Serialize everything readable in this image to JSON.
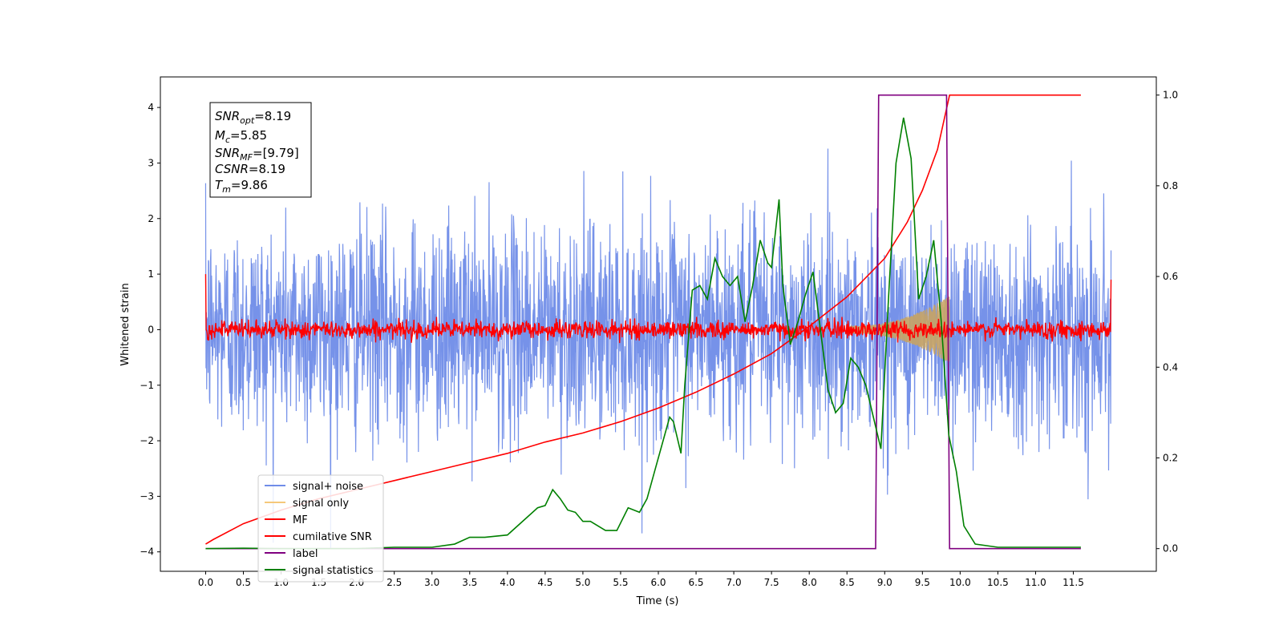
{
  "chart_data": {
    "type": "line",
    "xlabel": "Time (s)",
    "ylabel": "Whitened strain",
    "xlim": [
      -0.6,
      12.6
    ],
    "ylim": [
      -4.35,
      4.55
    ],
    "y2lim": [
      -0.05,
      1.04
    ],
    "grid": false,
    "legend_position": "lower-left",
    "x_ticks": [
      "0.0",
      "0.5",
      "1.0",
      "1.5",
      "2.0",
      "2.5",
      "3.0",
      "3.5",
      "4.0",
      "4.5",
      "5.0",
      "5.5",
      "6.0",
      "6.5",
      "7.0",
      "7.5",
      "8.0",
      "8.5",
      "9.0",
      "9.5",
      "10.0",
      "10.5",
      "11.0",
      "11.5"
    ],
    "y_ticks": [
      "4",
      "3",
      "2",
      "1",
      "0",
      "−1",
      "−2",
      "−3",
      "−4"
    ],
    "y2_ticks": [
      "1.0",
      "0.8",
      "0.6",
      "0.4",
      "0.2",
      "0.0"
    ],
    "annotation": {
      "snr_opt": {
        "base": "SNR",
        "sub": "opt",
        "value": "=8.19"
      },
      "mc": {
        "base": "M",
        "sub": "c",
        "value": "=5.85"
      },
      "snr_mf": {
        "base": "SNR",
        "sub": "MF",
        "value": "=[9.79]"
      },
      "csnr": {
        "base": "CSNR",
        "sub": "",
        "value": "=8.19"
      },
      "tm": {
        "base": "T",
        "sub": "m",
        "value": "=9.86"
      }
    },
    "colors": {
      "signal_noise": "#6f8ce8",
      "signal_only": "#f5c87a",
      "mf": "#ff0000",
      "cumulative_snr": "#ff0000",
      "label": "#800080",
      "signal_statistics": "#008000"
    },
    "series": [
      {
        "name": "signal+ noise",
        "style": "noise",
        "axis": "left",
        "x_range": [
          0.0,
          12.0
        ],
        "noise_sigma": 1.0
      },
      {
        "name": "signal only",
        "style": "chirp",
        "axis": "left",
        "x_range": [
          8.5,
          9.86
        ],
        "peak_amplitude": 0.55
      },
      {
        "name": "MF",
        "style": "noise",
        "axis": "left",
        "x_range": [
          0.0,
          12.0
        ],
        "noise_sigma": 0.08
      },
      {
        "name": "cumilative SNR",
        "axis": "right",
        "x": [
          0.0,
          0.1,
          0.5,
          1.0,
          1.5,
          2.0,
          2.5,
          3.0,
          3.5,
          4.0,
          4.5,
          5.0,
          5.5,
          6.0,
          6.5,
          7.0,
          7.5,
          8.0,
          8.5,
          9.0,
          9.3,
          9.5,
          9.7,
          9.86,
          10.0,
          11.0,
          11.6
        ],
        "values": [
          0.01,
          0.02,
          0.055,
          0.085,
          0.11,
          0.13,
          0.15,
          0.17,
          0.19,
          0.21,
          0.235,
          0.255,
          0.28,
          0.31,
          0.345,
          0.385,
          0.43,
          0.49,
          0.555,
          0.64,
          0.72,
          0.79,
          0.88,
          1.0,
          1.0,
          1.0,
          1.0
        ]
      },
      {
        "name": "label",
        "axis": "right",
        "x": [
          0.0,
          8.88,
          8.92,
          9.82,
          9.86,
          11.6
        ],
        "values": [
          0.0,
          0.0,
          1.0,
          1.0,
          0.0,
          0.0
        ]
      },
      {
        "name": "signal statistics",
        "axis": "right",
        "x": [
          0.0,
          0.5,
          1.0,
          2.0,
          2.5,
          3.0,
          3.3,
          3.5,
          3.7,
          4.0,
          4.2,
          4.4,
          4.5,
          4.6,
          4.7,
          4.8,
          4.9,
          5.0,
          5.1,
          5.3,
          5.45,
          5.6,
          5.75,
          5.85,
          5.95,
          6.05,
          6.15,
          6.2,
          6.3,
          6.35,
          6.45,
          6.55,
          6.65,
          6.75,
          6.85,
          6.95,
          7.05,
          7.15,
          7.25,
          7.35,
          7.45,
          7.5,
          7.6,
          7.65,
          7.75,
          7.85,
          7.95,
          8.05,
          8.15,
          8.25,
          8.35,
          8.45,
          8.55,
          8.65,
          8.75,
          8.85,
          8.95,
          9.05,
          9.15,
          9.25,
          9.35,
          9.45,
          9.55,
          9.65,
          9.75,
          9.85,
          9.95,
          10.05,
          10.2,
          10.5,
          11.0,
          11.5,
          11.6
        ],
        "values": [
          0.0,
          0.001,
          0.0,
          0.0,
          0.003,
          0.003,
          0.01,
          0.025,
          0.025,
          0.03,
          0.06,
          0.09,
          0.095,
          0.13,
          0.11,
          0.085,
          0.08,
          0.06,
          0.06,
          0.04,
          0.04,
          0.09,
          0.08,
          0.11,
          0.17,
          0.23,
          0.29,
          0.28,
          0.21,
          0.36,
          0.57,
          0.58,
          0.55,
          0.64,
          0.6,
          0.58,
          0.6,
          0.5,
          0.58,
          0.68,
          0.63,
          0.62,
          0.77,
          0.58,
          0.45,
          0.5,
          0.56,
          0.61,
          0.48,
          0.35,
          0.3,
          0.32,
          0.42,
          0.4,
          0.36,
          0.29,
          0.22,
          0.55,
          0.85,
          0.95,
          0.86,
          0.55,
          0.6,
          0.68,
          0.5,
          0.25,
          0.17,
          0.05,
          0.01,
          0.003,
          0.003,
          0.003,
          0.003
        ]
      }
    ]
  }
}
